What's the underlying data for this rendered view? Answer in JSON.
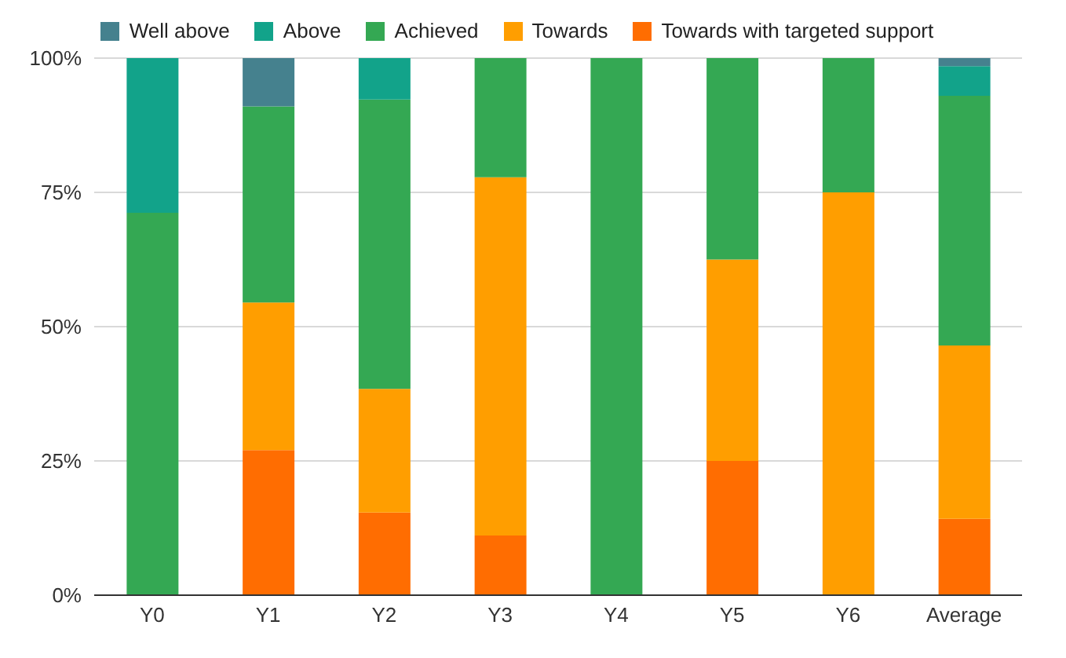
{
  "chart_data": {
    "type": "bar",
    "stacked": true,
    "categories": [
      "Y0",
      "Y1",
      "Y2",
      "Y3",
      "Y4",
      "Y5",
      "Y6",
      "Average"
    ],
    "series": [
      {
        "name": "Towards with targeted support",
        "color": "#ff6d01",
        "values": [
          0,
          27,
          15.4,
          11.1,
          0,
          25,
          0,
          14.2
        ]
      },
      {
        "name": "Towards",
        "color": "#ff9e00",
        "values": [
          0,
          27.5,
          23,
          66.7,
          0,
          37.5,
          75,
          32.3
        ]
      },
      {
        "name": "Achieved",
        "color": "#34a853",
        "values": [
          71.2,
          36.5,
          53.9,
          22.2,
          100,
          37.5,
          25,
          46.5
        ]
      },
      {
        "name": "Above",
        "color": "#12a38a",
        "values": [
          28.8,
          0,
          7.7,
          0,
          0,
          0,
          0,
          5.5
        ]
      },
      {
        "name": "Well above",
        "color": "#45818e",
        "values": [
          0,
          9,
          0,
          0,
          0,
          0,
          0,
          1.5
        ]
      }
    ],
    "ylim": [
      0,
      100
    ],
    "yticks": [
      {
        "value": 0,
        "label": "0%"
      },
      {
        "value": 25,
        "label": "25%"
      },
      {
        "value": 50,
        "label": "50%"
      },
      {
        "value": 75,
        "label": "75%"
      },
      {
        "value": 100,
        "label": "100%"
      }
    ],
    "grid": "y",
    "legend": "top"
  }
}
